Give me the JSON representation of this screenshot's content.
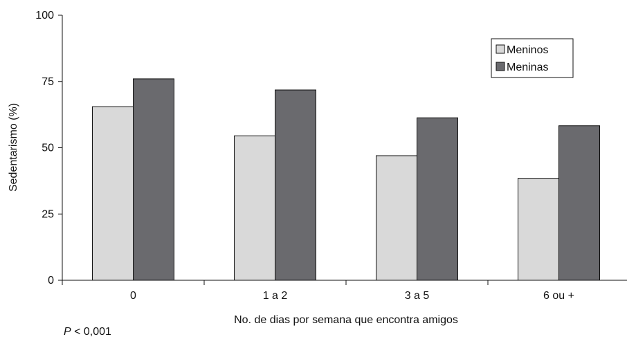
{
  "chart_data": {
    "type": "bar",
    "categories": [
      "0",
      "1 a 2",
      "3 a 5",
      "6 ou +"
    ],
    "series": [
      {
        "name": "Meninos",
        "values": [
          65.5,
          54.5,
          47,
          38.5
        ],
        "color": "#d9d9d9"
      },
      {
        "name": "Meninas",
        "values": [
          76,
          71.8,
          61.3,
          58.3
        ],
        "color": "#6a6a6e"
      }
    ],
    "title": "",
    "xlabel": "No. de dias por semana que encontra amigos",
    "ylabel": "Sedentarismo (%)",
    "ylim": [
      0,
      100
    ],
    "yticks": [
      "0",
      "25",
      "50",
      "75",
      "100"
    ],
    "grid": false,
    "legend_position": "top-right",
    "annotation": {
      "italic": "P",
      "text": " < 0,001"
    }
  }
}
